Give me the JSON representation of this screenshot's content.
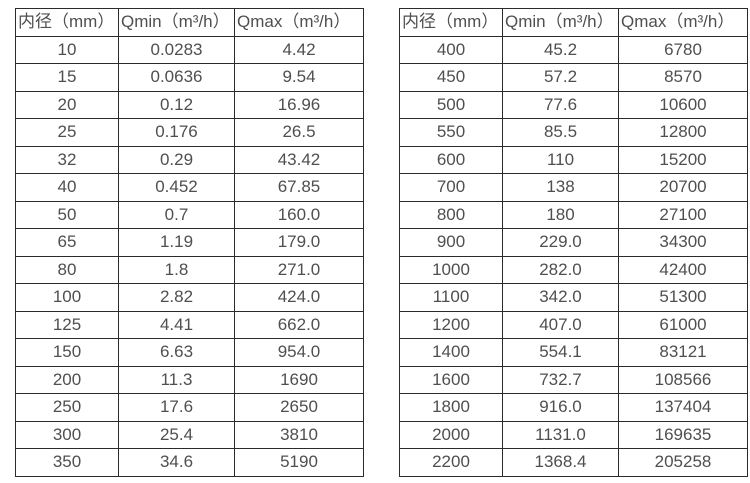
{
  "colors": {
    "table_border": "#2b2b2b",
    "text": "#4f4f4f",
    "background": "#ffffff"
  },
  "tables": [
    {
      "name": "flow-range-table-small-diameters",
      "headers": [
        "内径（mm）",
        "Qmin（m³/h）",
        "Qmax（m³/h）"
      ],
      "rows": [
        [
          "10",
          "0.0283",
          "4.42"
        ],
        [
          "15",
          "0.0636",
          "9.54"
        ],
        [
          "20",
          "0.12",
          "16.96"
        ],
        [
          "25",
          "0.176",
          "26.5"
        ],
        [
          "32",
          "0.29",
          "43.42"
        ],
        [
          "40",
          "0.452",
          "67.85"
        ],
        [
          "50",
          "0.7",
          "160.0"
        ],
        [
          "65",
          "1.19",
          "179.0"
        ],
        [
          "80",
          "1.8",
          "271.0"
        ],
        [
          "100",
          "2.82",
          "424.0"
        ],
        [
          "125",
          "4.41",
          "662.0"
        ],
        [
          "150",
          "6.63",
          "954.0"
        ],
        [
          "200",
          "11.3",
          "1690"
        ],
        [
          "250",
          "17.6",
          "2650"
        ],
        [
          "300",
          "25.4",
          "3810"
        ],
        [
          "350",
          "34.6",
          "5190"
        ]
      ]
    },
    {
      "name": "flow-range-table-large-diameters",
      "headers": [
        "内径（mm）",
        "Qmin（m³/h）",
        "Qmax（m³/h）"
      ],
      "rows": [
        [
          "400",
          "45.2",
          "6780"
        ],
        [
          "450",
          "57.2",
          "8570"
        ],
        [
          "500",
          "77.6",
          "10600"
        ],
        [
          "550",
          "85.5",
          "12800"
        ],
        [
          "600",
          "110",
          "15200"
        ],
        [
          "700",
          "138",
          "20700"
        ],
        [
          "800",
          "180",
          "27100"
        ],
        [
          "900",
          "229.0",
          "34300"
        ],
        [
          "1000",
          "282.0",
          "42400"
        ],
        [
          "1100",
          "342.0",
          "51300"
        ],
        [
          "1200",
          "407.0",
          "61000"
        ],
        [
          "1400",
          "554.1",
          "83121"
        ],
        [
          "1600",
          "732.7",
          "108566"
        ],
        [
          "1800",
          "916.0",
          "137404"
        ],
        [
          "2000",
          "1131.0",
          "169635"
        ],
        [
          "2200",
          "1368.4",
          "205258"
        ]
      ]
    }
  ]
}
